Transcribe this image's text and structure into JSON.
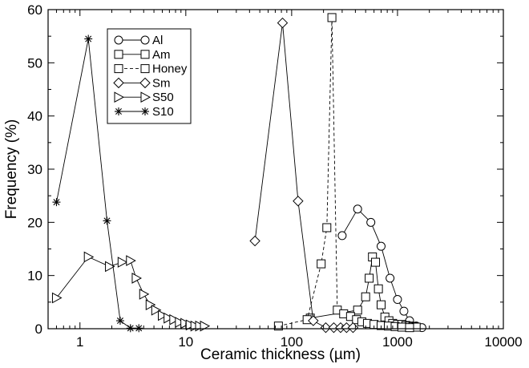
{
  "chart_data": {
    "type": "line",
    "xscale": "log",
    "xlabel": "Ceramic thickness (µm)",
    "ylabel": "Frequency (%)",
    "xlim": [
      0.5,
      10000
    ],
    "ylim": [
      0,
      60
    ],
    "xticks": [
      1,
      10,
      100,
      1000,
      10000
    ],
    "xtick_labels": [
      "1",
      "10",
      "100",
      "1000",
      "10000"
    ],
    "yticks": [
      0,
      10,
      20,
      30,
      40,
      50,
      60
    ],
    "ytick_labels": [
      "0",
      "10",
      "20",
      "30",
      "40",
      "50",
      "60"
    ],
    "grid": false,
    "legend_position": "top-left",
    "series": [
      {
        "name": "Al",
        "marker": "circle",
        "dash": "solid",
        "x": [
          300,
          420,
          560,
          700,
          850,
          1000,
          1150,
          1300,
          1500,
          1700
        ],
        "y": [
          17.5,
          22.5,
          20,
          15.5,
          9.5,
          5.5,
          3.3,
          1.5,
          0.5,
          0.2
        ]
      },
      {
        "name": "Am",
        "marker": "square",
        "dash": "solid",
        "x": [
          150,
          420,
          500,
          540,
          580,
          620,
          660,
          700,
          760,
          830,
          900,
          1000,
          1100,
          1200,
          1300,
          1400,
          1500
        ],
        "y": [
          2,
          3.5,
          6,
          9.5,
          13.5,
          12.5,
          7.5,
          4.5,
          2.2,
          1.5,
          1,
          0.8,
          0.8,
          0.6,
          0.5,
          0.4,
          0.3
        ]
      },
      {
        "name": "Honey",
        "marker": "square",
        "dash": "dashed",
        "x": [
          75,
          140,
          190,
          215,
          240,
          270,
          310,
          360,
          410,
          460,
          520,
          600,
          700,
          820,
          950,
          1100,
          1300
        ],
        "y": [
          0.5,
          1.7,
          12.2,
          19,
          58.5,
          3.5,
          2.8,
          2.3,
          1.7,
          1.3,
          1.0,
          0.8,
          0.6,
          0.5,
          0.4,
          0.3,
          0.2
        ]
      },
      {
        "name": "Sm",
        "marker": "diamond",
        "dash": "solid",
        "x": [
          45,
          82,
          115,
          160,
          210,
          250,
          290,
          330,
          380
        ],
        "y": [
          16.5,
          57.5,
          24,
          1.5,
          0.2,
          0.2,
          0.2,
          0.2,
          0.2
        ]
      },
      {
        "name": "S50",
        "marker": "triangle-right",
        "dash": "solid",
        "x": [
          0.6,
          1.2,
          1.9,
          2.5,
          3.0,
          3.4,
          4.0,
          4.6,
          5.2,
          6.0,
          6.8,
          7.7,
          8.7,
          9.8,
          11,
          12.2,
          13.5,
          15
        ],
        "y": [
          5.8,
          13.5,
          11.7,
          12.5,
          12.8,
          9.5,
          6.5,
          4.5,
          3.5,
          2.5,
          2,
          1.7,
          1.2,
          1,
          0.7,
          0.5,
          0.5,
          0.5
        ]
      },
      {
        "name": "S10",
        "marker": "asterisk",
        "dash": "solid",
        "x": [
          0.6,
          1.2,
          1.8,
          2.4,
          3.0,
          3.6
        ],
        "y": [
          23.8,
          54.5,
          20.3,
          1.5,
          0.1,
          0.1
        ]
      }
    ]
  }
}
